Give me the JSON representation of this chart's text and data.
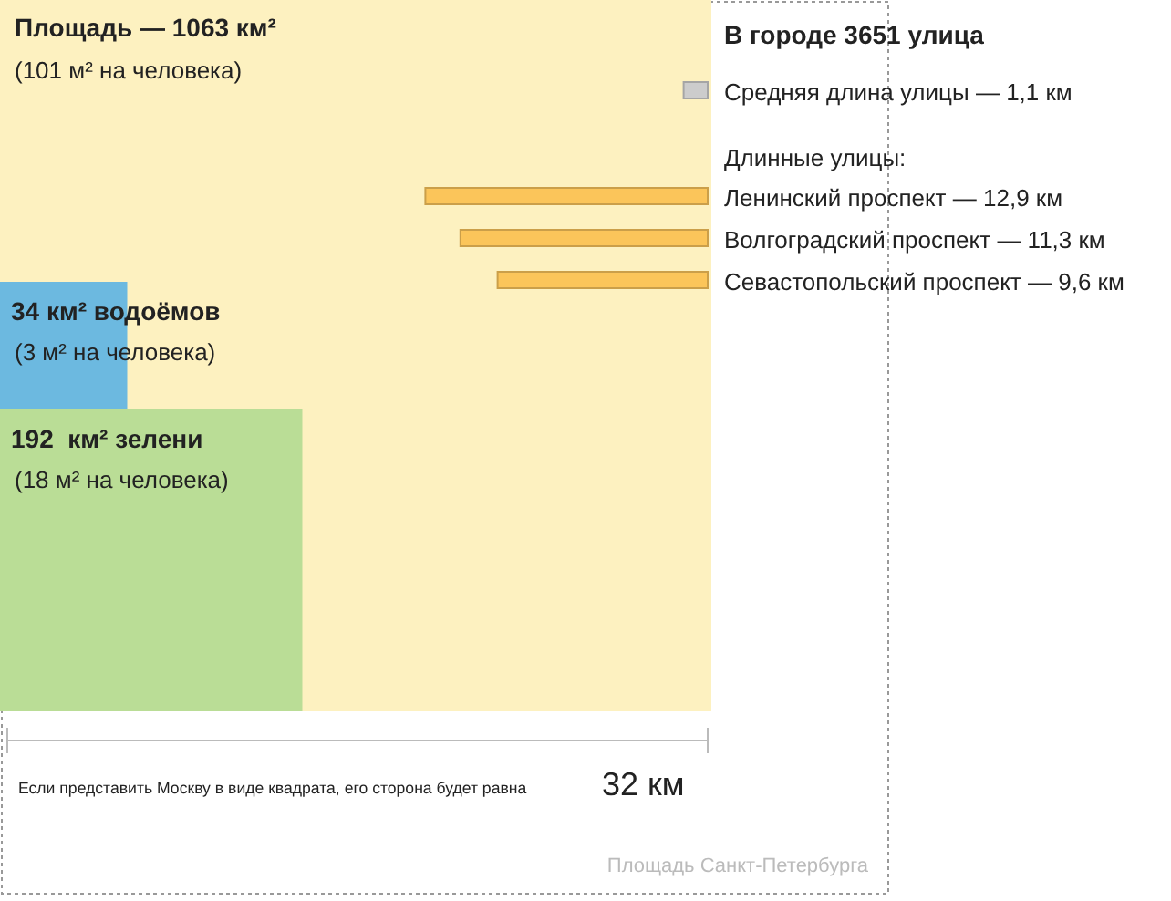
{
  "chart_data": [
    {
      "type": "other",
      "categories": [
        "Площадь",
        "водоёмов",
        "зелени"
      ],
      "values": [
        1063,
        34,
        192
      ],
      "colors": [
        "#fdf1c0",
        "#6cb9e0",
        "#badd96"
      ],
      "value_labels": [
        "— 1063 км²",
        "34 км²",
        "192  км²"
      ],
      "annotations": [
        "(101 м² на человека)",
        "(3 м² на человека)",
        "(18 м² на человека)",
        "Если представить Москву в виде квадрата, его сторона будет равна",
        "32 км",
        "Площадь Санкт-Петербурга"
      ]
    },
    {
      "type": "other",
      "title": "В городе 3651 улица",
      "subtitle": "Длинные улицы:",
      "categories": [
        "Средняя длина улицы",
        "Ленинский проспект",
        "Волгоградский проспект",
        "Севастопольский проспект"
      ],
      "values": [
        1.1,
        12.9,
        11.3,
        9.6
      ],
      "colors": [
        "#cccccc",
        "#fbc55a",
        "#fbc55a",
        "#fbc55a"
      ],
      "value_labels": [
        "— 1,1 км",
        "— 12,9 км",
        "— 11,3 км",
        "— 9,6 км"
      ]
    }
  ]
}
